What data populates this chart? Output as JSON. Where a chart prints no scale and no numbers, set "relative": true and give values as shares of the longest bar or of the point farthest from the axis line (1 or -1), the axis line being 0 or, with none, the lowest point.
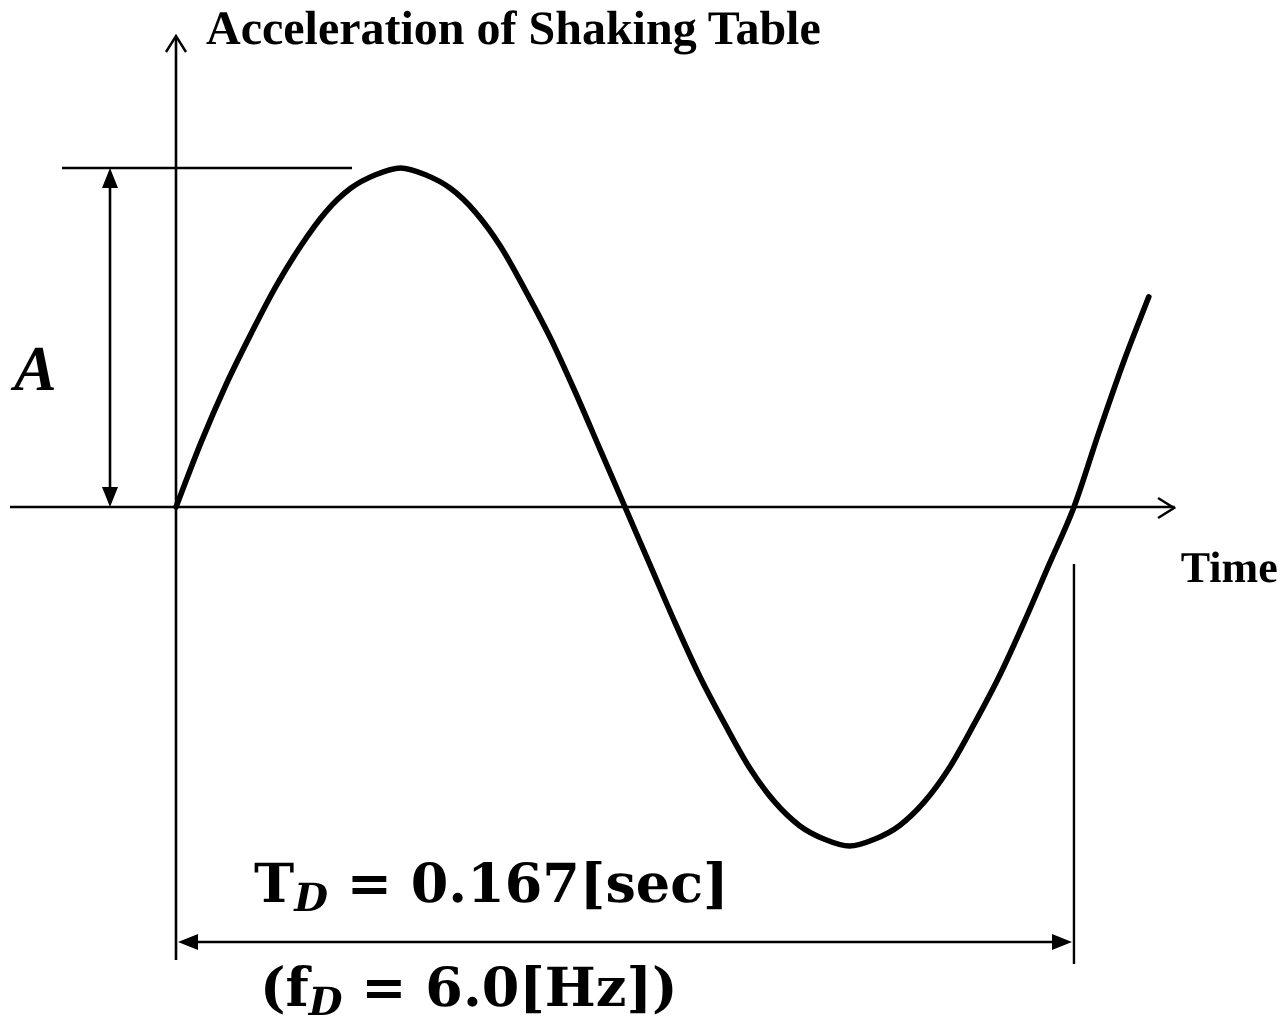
{
  "chart_data": {
    "type": "line",
    "xlabel": "Time",
    "ylabel": "Acceleration of Shaking Table",
    "categories": [
      null,
      null,
      null,
      null,
      null,
      null,
      null,
      null,
      null,
      null,
      null,
      null,
      null,
      null,
      null,
      null,
      null,
      null,
      null,
      null,
      null,
      null,
      null,
      null,
      null,
      null,
      null,
      null,
      null,
      null,
      null,
      null,
      null,
      null,
      null,
      null,
      null,
      null,
      null,
      null
    ],
    "relative": true,
    "series": [
      {
        "color": "#000000",
        "values": [
          0,
          0.19,
          0.36,
          0.51,
          0.65,
          0.77,
          0.87,
          0.94,
          0.98,
          1,
          0.98,
          0.94,
          0.87,
          0.77,
          0.64,
          0.5,
          0.34,
          0.17,
          0,
          -0.17,
          -0.34,
          -0.5,
          -0.64,
          -0.77,
          -0.87,
          -0.94,
          -0.98,
          -1,
          -0.98,
          -0.94,
          -0.87,
          -0.77,
          -0.64,
          -0.5,
          -0.34,
          -0.17,
          0,
          0.22,
          0.43,
          0.62
        ]
      }
    ],
    "annotations": [
      "A",
      "T$_{D}$ = 0.167[sec]",
      "(f$_{D}$ = 6.0[Hz])"
    ]
  }
}
